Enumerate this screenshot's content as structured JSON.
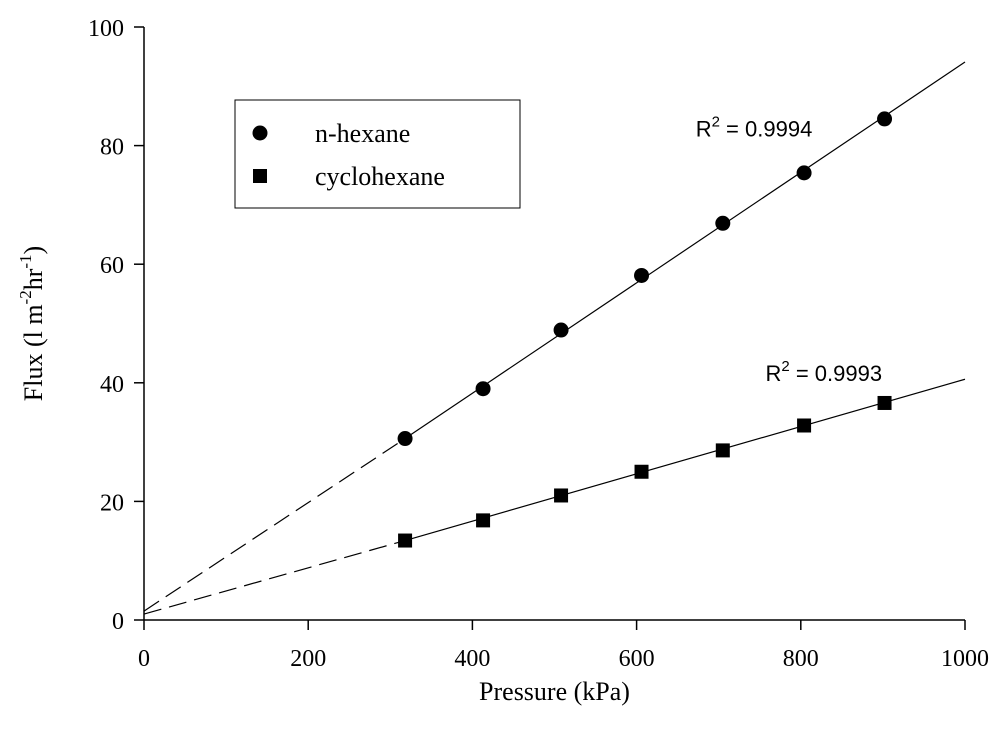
{
  "chart_data": {
    "type": "scatter",
    "xlabel": "Pressure (kPa)",
    "ylabel": {
      "base": "Flux (l m",
      "sup1": "-2",
      "mid": "hr",
      "sup2": "-1",
      "end": ")"
    },
    "xlim": [
      0,
      1000
    ],
    "ylim": [
      0,
      100
    ],
    "x_ticks": [
      0,
      200,
      400,
      600,
      800,
      1000
    ],
    "y_ticks": [
      0,
      20,
      40,
      60,
      80,
      100
    ],
    "grid": false,
    "legend_position": "top-left",
    "series": [
      {
        "name": "n-hexane",
        "marker": "circle",
        "x": [
          318,
          413,
          508,
          606,
          705,
          804,
          902
        ],
        "y": [
          30.6,
          39.0,
          48.9,
          58.1,
          66.9,
          75.4,
          84.5
        ],
        "fit_line": {
          "x_start": 318,
          "x_end": 1000,
          "y_start": 30.6,
          "y_end": 94.1
        },
        "extrapolation": {
          "x_start": 0,
          "y_start": 1.5,
          "x_end": 318,
          "y_end": 30.6
        },
        "annotation": {
          "prefix": "R",
          "sup": "2",
          "suffix": " = 0.9994",
          "x": 672,
          "y": 81.5
        }
      },
      {
        "name": "cyclohexane",
        "marker": "square",
        "x": [
          318,
          413,
          508,
          606,
          705,
          804,
          902
        ],
        "y": [
          13.4,
          16.8,
          21.0,
          25.0,
          28.6,
          32.8,
          36.6
        ],
        "fit_line": {
          "x_start": 318,
          "x_end": 1000,
          "y_start": 13.4,
          "y_end": 40.6
        },
        "extrapolation": {
          "x_start": 0,
          "y_start": 1.0,
          "x_end": 318,
          "y_end": 13.4
        },
        "annotation": {
          "prefix": "R",
          "sup": "2",
          "suffix": " = 0.9993",
          "x": 757,
          "y": 40.3
        }
      }
    ]
  }
}
